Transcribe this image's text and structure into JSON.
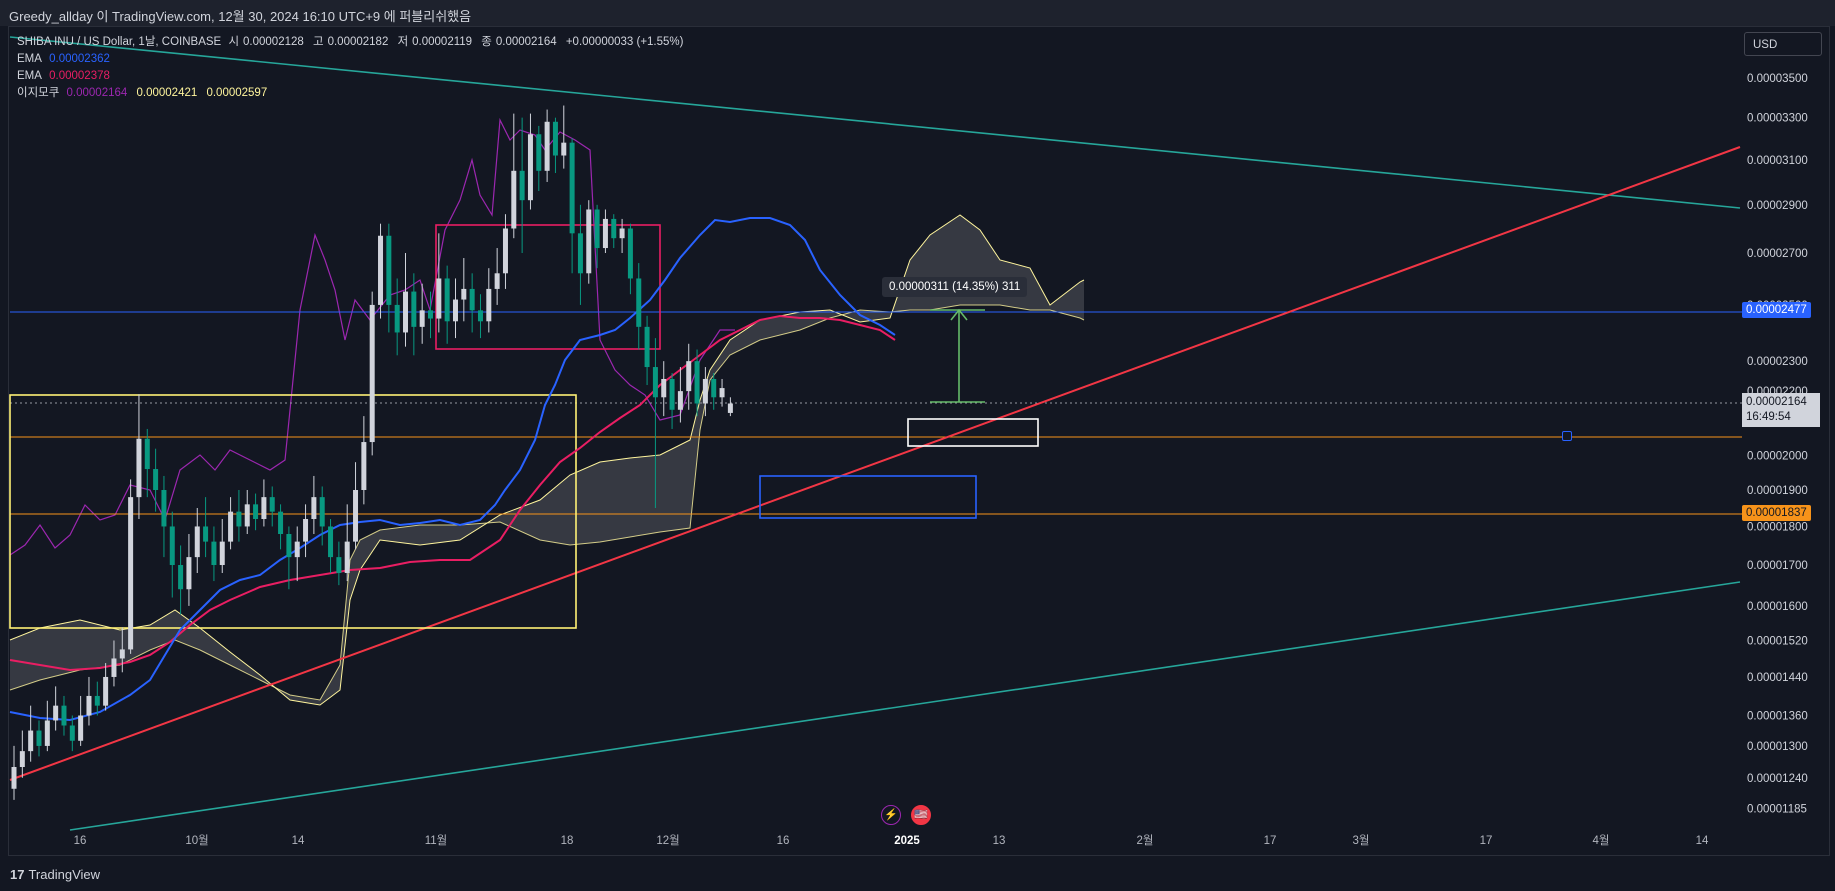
{
  "header": {
    "caption": "Greedy_allday 이 TradingView.com, 12월 30, 2024 16:10 UTC+9 에 퍼블리쉬했음"
  },
  "legend": {
    "symbol_line": "SHIBA INU / US Dollar, 1날, COINBASE",
    "ohlc": [
      {
        "k": "시",
        "v": "0.00002128"
      },
      {
        "k": "고",
        "v": "0.00002182"
      },
      {
        "k": "저",
        "v": "0.00002119"
      },
      {
        "k": "종",
        "v": "0.00002164"
      }
    ],
    "change": "+0.00000033 (+1.55%)",
    "ema1": {
      "label": "EMA",
      "value": "0.00002362",
      "color": "#2962ff"
    },
    "ema2": {
      "label": "EMA",
      "value": "0.00002378",
      "color": "#e91e63"
    },
    "ichimoku": {
      "label": "이지모쿠",
      "v1": "0.00002164",
      "v2": "0.00002421",
      "v3": "0.00002597",
      "v1_color": "#9c27b0",
      "v23_color": "#fff59d"
    }
  },
  "currency": "USD",
  "price_tags": {
    "blue": "0.00002477",
    "orange": "0.00001837",
    "current_price": "0.00002164",
    "countdown": "16:49:54"
  },
  "measure_label": "0.00000311 (14.35%) 311",
  "footer": {
    "brand": "TradingView"
  },
  "events": {
    "bolt": "⚡",
    "flag": "🇺🇸"
  },
  "chart_data": {
    "type": "candlestick",
    "y_axis_labels": [
      "0.00003500",
      "0.00003300",
      "0.00003100",
      "0.00002900",
      "0.00002700",
      "0.00002500",
      "0.00002300",
      "0.00002200",
      "0.00002100",
      "0.00002000",
      "0.00001900",
      "0.00001800",
      "0.00001700",
      "0.00001600",
      "0.00001520",
      "0.00001440",
      "0.00001360",
      "0.00001300",
      "0.00001240",
      "0.00001185"
    ],
    "x_axis_labels": [
      "16",
      "10월",
      "14",
      "11월",
      "18",
      "12월",
      "16",
      "2025",
      "13",
      "2월",
      "17",
      "3월",
      "17",
      "4월",
      "14"
    ],
    "ylim": [
      1.15e-05,
      3.62e-05
    ],
    "scale": "log",
    "candles": [
      {
        "o": 1.22,
        "c": 1.26,
        "h": 1.3,
        "l": 1.2
      },
      {
        "o": 1.26,
        "c": 1.29,
        "h": 1.33,
        "l": 1.24
      },
      {
        "o": 1.29,
        "c": 1.33,
        "h": 1.38,
        "l": 1.27
      },
      {
        "o": 1.33,
        "c": 1.3,
        "h": 1.35,
        "l": 1.28
      },
      {
        "o": 1.3,
        "c": 1.35,
        "h": 1.39,
        "l": 1.29
      },
      {
        "o": 1.35,
        "c": 1.38,
        "h": 1.42,
        "l": 1.33
      },
      {
        "o": 1.38,
        "c": 1.34,
        "h": 1.4,
        "l": 1.32
      },
      {
        "o": 1.34,
        "c": 1.31,
        "h": 1.36,
        "l": 1.29
      },
      {
        "o": 1.31,
        "c": 1.36,
        "h": 1.4,
        "l": 1.3
      },
      {
        "o": 1.36,
        "c": 1.4,
        "h": 1.44,
        "l": 1.34
      },
      {
        "o": 1.4,
        "c": 1.38,
        "h": 1.43,
        "l": 1.36
      },
      {
        "o": 1.38,
        "c": 1.44,
        "h": 1.47,
        "l": 1.37
      },
      {
        "o": 1.44,
        "c": 1.48,
        "h": 1.52,
        "l": 1.42
      },
      {
        "o": 1.48,
        "c": 1.5,
        "h": 1.55,
        "l": 1.45
      },
      {
        "o": 1.5,
        "c": 1.88,
        "h": 1.93,
        "l": 1.49
      },
      {
        "o": 1.88,
        "c": 2.05,
        "h": 2.19,
        "l": 1.82
      },
      {
        "o": 2.05,
        "c": 1.96,
        "h": 2.08,
        "l": 1.88
      },
      {
        "o": 1.96,
        "c": 1.9,
        "h": 2.02,
        "l": 1.84
      },
      {
        "o": 1.9,
        "c": 1.8,
        "h": 1.94,
        "l": 1.72
      },
      {
        "o": 1.8,
        "c": 1.7,
        "h": 1.84,
        "l": 1.62
      },
      {
        "o": 1.7,
        "c": 1.64,
        "h": 1.75,
        "l": 1.58
      },
      {
        "o": 1.64,
        "c": 1.72,
        "h": 1.78,
        "l": 1.6
      },
      {
        "o": 1.72,
        "c": 1.8,
        "h": 1.85,
        "l": 1.68
      },
      {
        "o": 1.8,
        "c": 1.76,
        "h": 1.88,
        "l": 1.72
      },
      {
        "o": 1.76,
        "c": 1.7,
        "h": 1.8,
        "l": 1.66
      },
      {
        "o": 1.7,
        "c": 1.76,
        "h": 1.82,
        "l": 1.68
      },
      {
        "o": 1.76,
        "c": 1.84,
        "h": 1.88,
        "l": 1.74
      },
      {
        "o": 1.84,
        "c": 1.8,
        "h": 1.9,
        "l": 1.76
      },
      {
        "o": 1.8,
        "c": 1.86,
        "h": 1.9,
        "l": 1.78
      },
      {
        "o": 1.86,
        "c": 1.82,
        "h": 1.89,
        "l": 1.79
      },
      {
        "o": 1.82,
        "c": 1.88,
        "h": 1.93,
        "l": 1.8
      },
      {
        "o": 1.88,
        "c": 1.84,
        "h": 1.91,
        "l": 1.8
      },
      {
        "o": 1.84,
        "c": 1.78,
        "h": 1.86,
        "l": 1.74
      },
      {
        "o": 1.78,
        "c": 1.72,
        "h": 1.8,
        "l": 1.64
      },
      {
        "o": 1.72,
        "c": 1.76,
        "h": 1.8,
        "l": 1.66
      },
      {
        "o": 1.76,
        "c": 1.82,
        "h": 1.86,
        "l": 1.72
      },
      {
        "o": 1.82,
        "c": 1.88,
        "h": 1.94,
        "l": 1.78
      },
      {
        "o": 1.88,
        "c": 1.8,
        "h": 1.91,
        "l": 1.75
      },
      {
        "o": 1.8,
        "c": 1.72,
        "h": 1.82,
        "l": 1.68
      },
      {
        "o": 1.72,
        "c": 1.68,
        "h": 1.76,
        "l": 1.65
      },
      {
        "o": 1.68,
        "c": 1.76,
        "h": 1.86,
        "l": 1.66
      },
      {
        "o": 1.76,
        "c": 1.9,
        "h": 1.98,
        "l": 1.74
      },
      {
        "o": 1.9,
        "c": 2.04,
        "h": 2.12,
        "l": 1.86
      },
      {
        "o": 2.04,
        "c": 2.5,
        "h": 2.55,
        "l": 2.0
      },
      {
        "o": 2.5,
        "c": 2.77,
        "h": 2.82,
        "l": 2.45
      },
      {
        "o": 2.77,
        "c": 2.5,
        "h": 2.82,
        "l": 2.4
      },
      {
        "o": 2.5,
        "c": 2.4,
        "h": 2.6,
        "l": 2.32
      },
      {
        "o": 2.4,
        "c": 2.55,
        "h": 2.7,
        "l": 2.35
      },
      {
        "o": 2.55,
        "c": 2.42,
        "h": 2.62,
        "l": 2.32
      },
      {
        "o": 2.42,
        "c": 2.48,
        "h": 2.58,
        "l": 2.36
      },
      {
        "o": 2.48,
        "c": 2.45,
        "h": 2.55,
        "l": 2.38
      },
      {
        "o": 2.45,
        "c": 2.6,
        "h": 2.78,
        "l": 2.4
      },
      {
        "o": 2.6,
        "c": 2.44,
        "h": 2.65,
        "l": 2.36
      },
      {
        "o": 2.44,
        "c": 2.52,
        "h": 2.6,
        "l": 2.38
      },
      {
        "o": 2.52,
        "c": 2.56,
        "h": 2.68,
        "l": 2.44
      },
      {
        "o": 2.56,
        "c": 2.48,
        "h": 2.62,
        "l": 2.4
      },
      {
        "o": 2.48,
        "c": 2.44,
        "h": 2.54,
        "l": 2.38
      },
      {
        "o": 2.44,
        "c": 2.56,
        "h": 2.64,
        "l": 2.4
      },
      {
        "o": 2.56,
        "c": 2.62,
        "h": 2.72,
        "l": 2.5
      },
      {
        "o": 2.62,
        "c": 2.8,
        "h": 2.86,
        "l": 2.56
      },
      {
        "o": 2.8,
        "c": 3.05,
        "h": 3.32,
        "l": 2.76
      },
      {
        "o": 3.05,
        "c": 2.92,
        "h": 3.3,
        "l": 2.7
      },
      {
        "o": 2.92,
        "c": 3.22,
        "h": 3.32,
        "l": 2.88
      },
      {
        "o": 3.22,
        "c": 3.05,
        "h": 3.26,
        "l": 2.96
      },
      {
        "o": 3.05,
        "c": 3.28,
        "h": 3.34,
        "l": 3.0
      },
      {
        "o": 3.28,
        "c": 3.12,
        "h": 3.3,
        "l": 3.04
      },
      {
        "o": 3.12,
        "c": 3.18,
        "h": 3.36,
        "l": 3.06
      },
      {
        "o": 3.18,
        "c": 2.78,
        "h": 3.2,
        "l": 2.62
      },
      {
        "o": 2.78,
        "c": 2.62,
        "h": 2.9,
        "l": 2.5
      },
      {
        "o": 2.62,
        "c": 2.88,
        "h": 2.92,
        "l": 2.58
      },
      {
        "o": 2.88,
        "c": 2.72,
        "h": 2.9,
        "l": 2.64
      },
      {
        "o": 2.72,
        "c": 2.84,
        "h": 2.88,
        "l": 2.7
      },
      {
        "o": 2.84,
        "c": 2.76,
        "h": 2.86,
        "l": 2.72
      },
      {
        "o": 2.76,
        "c": 2.8,
        "h": 2.84,
        "l": 2.7
      },
      {
        "o": 2.8,
        "c": 2.6,
        "h": 2.82,
        "l": 2.54
      },
      {
        "o": 2.6,
        "c": 2.42,
        "h": 2.66,
        "l": 2.34
      },
      {
        "o": 2.42,
        "c": 2.28,
        "h": 2.46,
        "l": 2.22
      },
      {
        "o": 2.28,
        "c": 2.18,
        "h": 2.38,
        "l": 1.85
      },
      {
        "o": 2.18,
        "c": 2.24,
        "h": 2.3,
        "l": 2.12
      },
      {
        "o": 2.24,
        "c": 2.14,
        "h": 2.26,
        "l": 2.08
      },
      {
        "o": 2.14,
        "c": 2.2,
        "h": 2.28,
        "l": 2.1
      },
      {
        "o": 2.2,
        "c": 2.3,
        "h": 2.36,
        "l": 2.14
      },
      {
        "o": 2.3,
        "c": 2.16,
        "h": 2.34,
        "l": 2.12
      },
      {
        "o": 2.16,
        "c": 2.24,
        "h": 2.28,
        "l": 2.12
      },
      {
        "o": 2.24,
        "c": 2.18,
        "h": 2.26,
        "l": 2.14
      },
      {
        "o": 2.18,
        "c": 2.21,
        "h": 2.24,
        "l": 2.15
      },
      {
        "o": 2.13,
        "c": 2.16,
        "h": 2.18,
        "l": 2.12
      }
    ]
  }
}
